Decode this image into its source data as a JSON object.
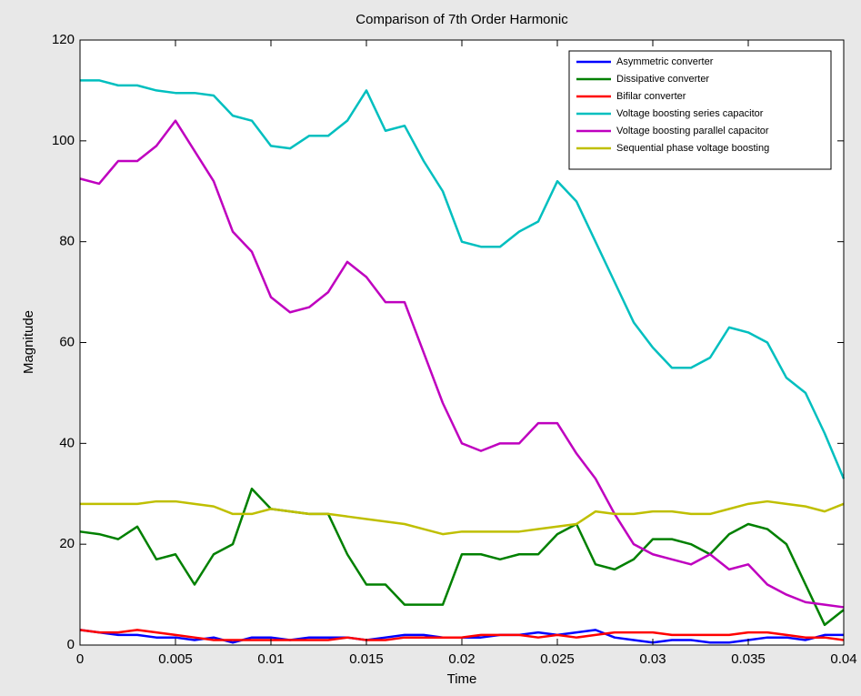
{
  "chart_data": {
    "type": "line",
    "title": "Comparison of 7th Order Harmonic",
    "xlabel": "Time",
    "ylabel": "Magnitude",
    "x": [
      0,
      0.001,
      0.002,
      0.003,
      0.004,
      0.005,
      0.006,
      0.007,
      0.008,
      0.009,
      0.01,
      0.011,
      0.012,
      0.013,
      0.014,
      0.015,
      0.016,
      0.017,
      0.018,
      0.019,
      0.02,
      0.021,
      0.022,
      0.023,
      0.024,
      0.025,
      0.026,
      0.027,
      0.028,
      0.029,
      0.03,
      0.031,
      0.032,
      0.033,
      0.034,
      0.035,
      0.036,
      0.037,
      0.038,
      0.039,
      0.04
    ],
    "series": [
      {
        "name": "Asymmetric converter",
        "color": "#0000ff",
        "values": [
          3,
          2.5,
          2,
          2,
          1.5,
          1.5,
          1,
          1.5,
          0.5,
          1.5,
          1.5,
          1,
          1.5,
          1.5,
          1.5,
          1,
          1.5,
          2,
          2,
          1.5,
          1.5,
          1.5,
          2,
          2,
          2.5,
          2,
          2.5,
          3,
          1.5,
          1,
          0.5,
          1,
          1,
          0.5,
          0.5,
          1,
          1.5,
          1.5,
          1,
          2,
          2
        ]
      },
      {
        "name": "Dissipative converter",
        "color": "#008000",
        "values": [
          22.5,
          22,
          21,
          23.5,
          17,
          18,
          12,
          18,
          20,
          31,
          27,
          26.5,
          26,
          26,
          18,
          12,
          12,
          8,
          8,
          8,
          18,
          18,
          17,
          18,
          18,
          22,
          24,
          16,
          15,
          17,
          21,
          21,
          20,
          18,
          22,
          24,
          23,
          20,
          12,
          4,
          7
        ]
      },
      {
        "name": "Bifilar converter",
        "color": "#ff0000",
        "values": [
          3,
          2.5,
          2.5,
          3,
          2.5,
          2,
          1.5,
          1,
          1,
          1,
          1,
          1,
          1,
          1,
          1.5,
          1,
          1,
          1.5,
          1.5,
          1.5,
          1.5,
          2,
          2,
          2,
          1.5,
          2,
          1.5,
          2,
          2.5,
          2.5,
          2.5,
          2,
          2,
          2,
          2,
          2.5,
          2.5,
          2,
          1.5,
          1.5,
          1
        ]
      },
      {
        "name": "Voltage boosting series capacitor",
        "color": "#00bfbf",
        "values": [
          112,
          112,
          111,
          111,
          110,
          109.5,
          109.5,
          109,
          105,
          104,
          99,
          98.5,
          101,
          101,
          104,
          110,
          102,
          103,
          96,
          90,
          80,
          79,
          79,
          82,
          84,
          92,
          88,
          80,
          72,
          64,
          59,
          55,
          55,
          57,
          63,
          62,
          60,
          53,
          50,
          42,
          33
        ]
      },
      {
        "name": "Voltage boosting parallel capacitor",
        "color": "#bf00bf",
        "values": [
          92.5,
          91.5,
          96,
          96,
          99,
          104,
          98,
          92,
          82,
          78,
          69,
          66,
          67,
          70,
          76,
          73,
          68,
          68,
          58,
          48,
          40,
          38.5,
          40,
          40,
          44,
          44,
          38,
          33,
          26,
          20,
          18,
          17,
          16,
          18,
          15,
          16,
          12,
          10,
          8.5,
          8,
          7.5
        ]
      },
      {
        "name": "Sequential phase voltage boosting",
        "color": "#bfbf00",
        "values": [
          28,
          28,
          28,
          28,
          28.5,
          28.5,
          28,
          27.5,
          26,
          26,
          27,
          26.5,
          26,
          26,
          25.5,
          25,
          24.5,
          24,
          23,
          22,
          22.5,
          22.5,
          22.5,
          22.5,
          23,
          23.5,
          24,
          26.5,
          26,
          26,
          26.5,
          26.5,
          26,
          26,
          27,
          28,
          28.5,
          28,
          27.5,
          26.5,
          28
        ]
      }
    ],
    "xlim": [
      0,
      0.04
    ],
    "xticks": [
      0,
      0.005,
      0.01,
      0.015,
      0.02,
      0.025,
      0.03,
      0.035,
      0.04
    ],
    "ylim": [
      0,
      120
    ],
    "yticks": [
      0,
      20,
      40,
      60,
      80,
      100,
      120
    ],
    "legend": "top-right"
  }
}
